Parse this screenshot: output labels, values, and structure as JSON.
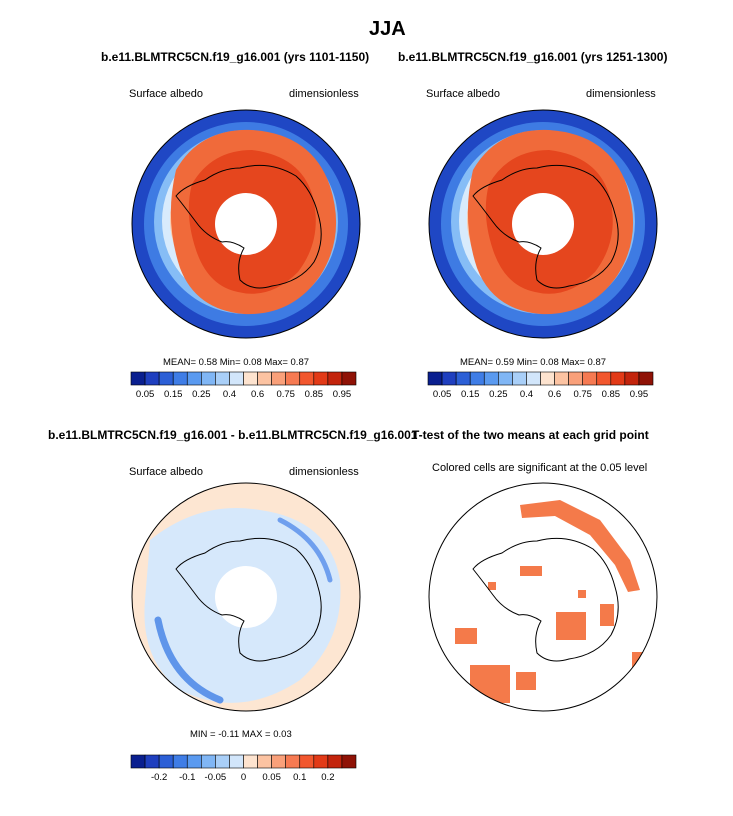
{
  "title": "JJA",
  "panels": [
    {
      "id": "p1",
      "title": "b.e11.BLMTRC5CN.f19_g16.001 (yrs 1101-1150)",
      "left_label": "Surface albedo",
      "right_label": "dimensionless",
      "stats": "MEAN=  0.58  Min=  0.08  Max=  0.87"
    },
    {
      "id": "p2",
      "title": "b.e11.BLMTRC5CN.f19_g16.001 (yrs 1251-1300)",
      "left_label": "Surface albedo",
      "right_label": "dimensionless",
      "stats": "MEAN=  0.59  Min=  0.08  Max=  0.87"
    },
    {
      "id": "p3",
      "title": "b.e11.BLMTRC5CN.f19_g16.001 - b.e11.BLMTRC5CN.f19_g16.001",
      "left_label": "Surface albedo",
      "right_label": "dimensionless",
      "stats": "MIN =  -0.11 MAX =  0.03"
    },
    {
      "id": "p4",
      "title": "T-test of the two means at each grid point",
      "subtitle": "Colored cells are significant at the 0.05 level"
    }
  ],
  "colors": {
    "abs_scale": [
      "#0a1f8f",
      "#1f3fbf",
      "#2c5fd6",
      "#3f7de6",
      "#5a9af0",
      "#80b6f5",
      "#a9cff8",
      "#d2e6fb",
      "#fde3cf",
      "#fcc3a2",
      "#f9a07a",
      "#f67a52",
      "#f2572e",
      "#e23a17",
      "#c3240c",
      "#8f1206"
    ],
    "diff_scale": [
      "#0a1f8f",
      "#1f3fbf",
      "#2c5fd6",
      "#3f7de6",
      "#5a9af0",
      "#80b6f5",
      "#a9cff8",
      "#d2e6fb",
      "#fde3cf",
      "#fcc3a2",
      "#f9a07a",
      "#f67a52",
      "#f2572e",
      "#e23a17",
      "#c3240c",
      "#8f1206"
    ],
    "ttest_fill": "#f47a4a"
  },
  "chart_data": [
    {
      "type": "heatmap",
      "projection": "south-polar-stereographic",
      "title": "b.e11.BLMTRC5CN.f19_g16.001 (yrs 1101-1150)",
      "variable": "Surface albedo",
      "units": "dimensionless",
      "mean": 0.58,
      "min": 0.08,
      "max": 0.87,
      "colorbar_ticks": [
        "0.05",
        "0.15",
        "0.25",
        "0.4",
        "0.6",
        "0.75",
        "0.85",
        "0.95"
      ]
    },
    {
      "type": "heatmap",
      "projection": "south-polar-stereographic",
      "title": "b.e11.BLMTRC5CN.f19_g16.001 (yrs 1251-1300)",
      "variable": "Surface albedo",
      "units": "dimensionless",
      "mean": 0.59,
      "min": 0.08,
      "max": 0.87,
      "colorbar_ticks": [
        "0.05",
        "0.15",
        "0.25",
        "0.4",
        "0.6",
        "0.75",
        "0.85",
        "0.95"
      ]
    },
    {
      "type": "heatmap",
      "projection": "south-polar-stereographic",
      "title": "b.e11.BLMTRC5CN.f19_g16.001 - b.e11.BLMTRC5CN.f19_g16.001",
      "variable": "Surface albedo",
      "units": "dimensionless",
      "min": -0.11,
      "max": 0.03,
      "colorbar_ticks": [
        "-0.2",
        "-0.1",
        "-0.05",
        "0",
        "0.05",
        "0.1",
        "0.2"
      ]
    },
    {
      "type": "heatmap",
      "projection": "south-polar-stereographic",
      "title": "T-test of the two means at each grid point",
      "subtitle": "Colored cells are significant at the 0.05 level",
      "significance_level": 0.05
    }
  ]
}
